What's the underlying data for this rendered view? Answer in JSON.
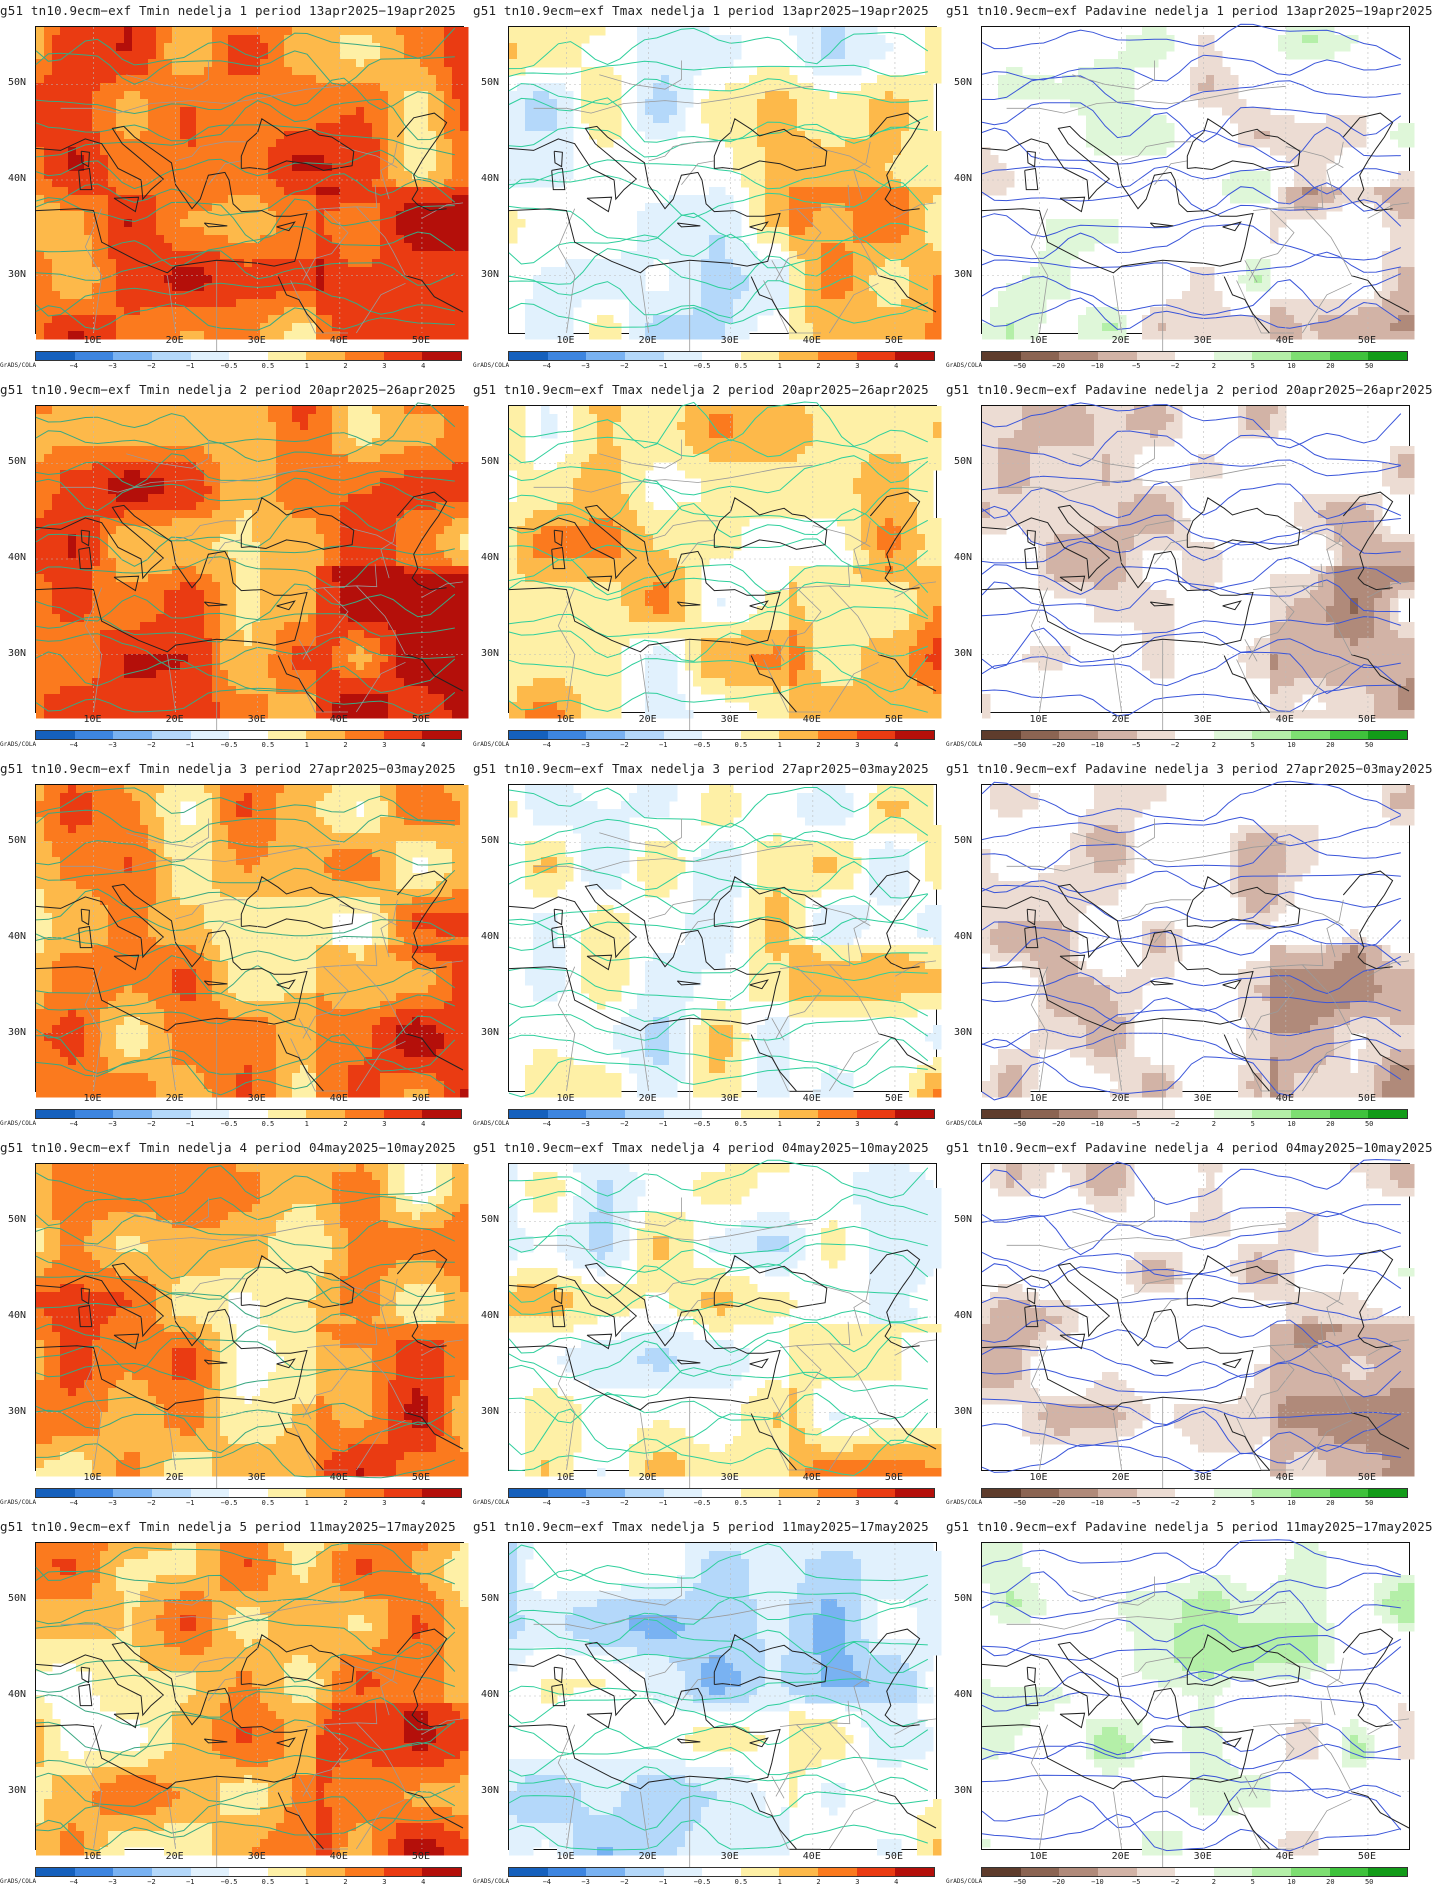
{
  "rows": [
    {
      "label": "nedelja 1",
      "tmin": "g51 tn10.9ecm−exf Tmin nedelja 1 period 13apr2025−19apr2025",
      "tmax": "g51 tn10.9ecm−exf Tmax nedelja 1 period 13apr2025−19apr2025",
      "pad": "g51 tn10.9ecm−exf Padavine nedelja 1 period 13apr2025−19apr2025",
      "tmin_level": 3,
      "tmax_level": 0,
      "pad_level": 0
    },
    {
      "label": "nedelja 2",
      "tmin": "g51 tn10.9ecm−exf Tmin nedelja 2 period 20apr2025−26apr2025",
      "tmax": "g51 tn10.9ecm−exf Tmax nedelja 2 period 20apr2025−26apr2025",
      "pad": "g51 tn10.9ecm−exf Padavine nedelja 2 period 20apr2025−26apr2025",
      "tmin_level": 3,
      "tmax_level": 1,
      "pad_level": -1
    },
    {
      "label": "nedelja 3",
      "tmin": "g51 tn10.9ecm−exf Tmin nedelja 3 period 27apr2025−03may2025",
      "tmax": "g51 tn10.9ecm−exf Tmax nedelja 3 period 27apr2025−03may2025",
      "pad": "g51 tn10.9ecm−exf Padavine nedelja 3 period 27apr2025−03may2025",
      "tmin_level": 2,
      "tmax_level": 0,
      "pad_level": -1
    },
    {
      "label": "nedelja 4",
      "tmin": "g51 tn10.9ecm−exf Tmin nedelja 4 period 04may2025−10may2025",
      "tmax": "g51 tn10.9ecm−exf Tmax nedelja 4 period 04may2025−10may2025",
      "pad": "g51 tn10.9ecm−exf Padavine nedelja 4 period 04may2025−10may2025",
      "tmin_level": 2,
      "tmax_level": 0,
      "pad_level": -1
    },
    {
      "label": "nedelja 5",
      "tmin": "g51 tn10.9ecm−exf Tmin nedelja 5 period 11may2025−17may2025",
      "tmax": "g51 tn10.9ecm−exf Tmax nedelja 5 period 11may2025−17may2025",
      "pad": "g51 tn10.9ecm−exf Padavine nedelja 5 period 11may2025−17may2025",
      "tmin_level": 2,
      "tmax_level": -1,
      "pad_level": 1
    }
  ],
  "lat_labels": [
    "50N",
    "40N",
    "30N"
  ],
  "lon_labels": [
    "10E",
    "20E",
    "30E",
    "40E",
    "50E"
  ],
  "grads_label": "GrADS/COLA",
  "temp_scale": {
    "labels": [
      "−4",
      "−3",
      "−2",
      "−1",
      "−0.5",
      "0.5",
      "1",
      "2",
      "3",
      "4"
    ],
    "colors": [
      "#1560bd",
      "#3d85e0",
      "#79b2f2",
      "#b4d8fa",
      "#e1f1fd",
      "#ffffff",
      "#fef0a6",
      "#fdb94a",
      "#fb7a1e",
      "#ea3b12",
      "#b40f0a"
    ]
  },
  "precip_scale": {
    "labels": [
      "−50",
      "−20",
      "−10",
      "−5",
      "−2",
      "2",
      "5",
      "10",
      "20",
      "50"
    ],
    "colors": [
      "#5e3c2c",
      "#8b6452",
      "#b08a7a",
      "#d2b3a6",
      "#ecdcd3",
      "#ffffff",
      "#dff7d9",
      "#b4efa8",
      "#7ede72",
      "#3fc23c",
      "#129b18"
    ]
  },
  "colors": {
    "tmin_contour": "#3aa882",
    "tmax_contour": "#2fcf9c",
    "precip_contour": "#3a55d9",
    "coast": "#222222",
    "border": "#9a9a9a"
  }
}
